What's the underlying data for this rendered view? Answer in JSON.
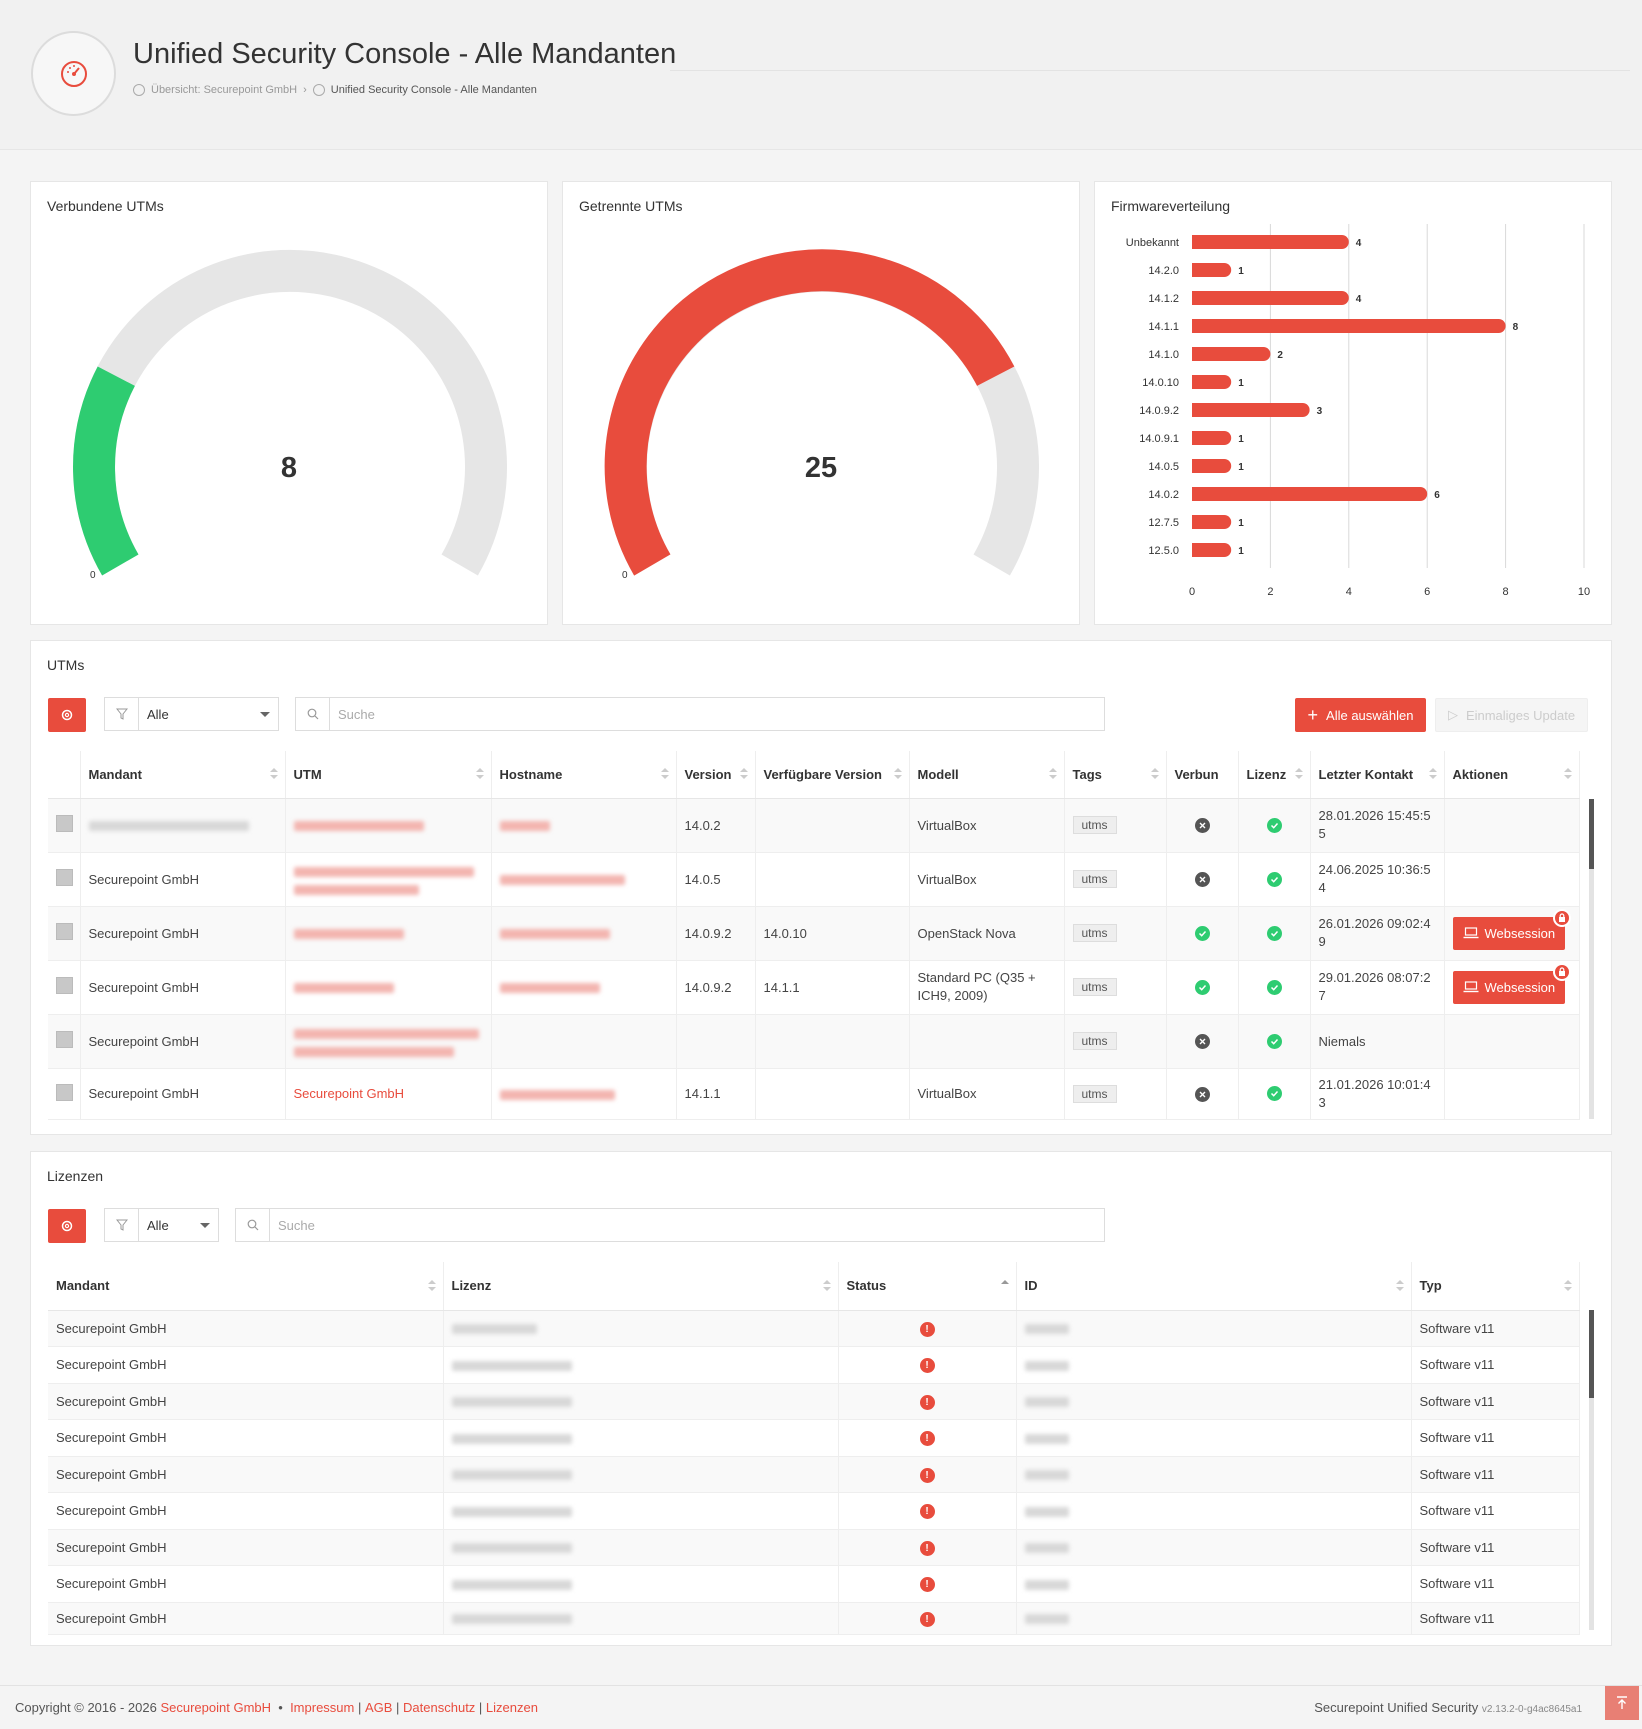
{
  "header": {
    "title": "Unified Security Console - Alle Mandanten",
    "breadcrumb": [
      "Übersicht: Securepoint GmbH",
      "Unified Security Console - Alle Mandanten"
    ]
  },
  "gauges": {
    "connected": {
      "title": "Verbundene UTMs",
      "value": "8",
      "min": "0",
      "fraction": 0.24,
      "color": "#2ecc71"
    },
    "disconnected": {
      "title": "Getrennte UTMs",
      "value": "25",
      "min": "0",
      "fraction": 0.76,
      "color": "#e84c3d"
    }
  },
  "chart_data": {
    "type": "bar",
    "title": "Firmwareverteilung",
    "orientation": "horizontal",
    "categories": [
      "Unbekannt",
      "14.2.0",
      "14.1.2",
      "14.1.1",
      "14.1.0",
      "14.0.10",
      "14.0.9.2",
      "14.0.9.1",
      "14.0.5",
      "14.0.2",
      "12.7.5",
      "12.5.0"
    ],
    "values": [
      4,
      1,
      4,
      8,
      2,
      1,
      3,
      1,
      1,
      6,
      1,
      1
    ],
    "xlim": [
      0,
      10
    ],
    "xticks": [
      "0",
      "2",
      "4",
      "6",
      "8",
      "10"
    ],
    "grid": true,
    "color": "#e84c3d"
  },
  "utms": {
    "title": "UTMs",
    "filter_value": "Alle",
    "search_placeholder": "Suche",
    "select_all_label": "Alle auswählen",
    "update_label": "Einmaliges Update",
    "columns": [
      "Mandant",
      "UTM",
      "Hostname",
      "Version",
      "Verfügbare Version",
      "Modell",
      "Tags",
      "Verbun",
      "Lizenz",
      "Letzter Kontakt",
      "Aktionen"
    ],
    "rows": [
      {
        "mandant": "",
        "utm": "",
        "hostname": "",
        "version": "14.0.2",
        "available": "",
        "model": "VirtualBox",
        "tag": "utms",
        "connected": false,
        "license": true,
        "contact": "28.01.2026 15:45:5 5",
        "action": ""
      },
      {
        "mandant": "Securepoint GmbH",
        "utm": "",
        "hostname": "",
        "version": "14.0.5",
        "available": "",
        "model": "VirtualBox",
        "tag": "utms",
        "connected": false,
        "license": true,
        "contact": "24.06.2025 10:36:5 4",
        "action": ""
      },
      {
        "mandant": "Securepoint GmbH",
        "utm": "",
        "hostname": "",
        "version": "14.0.9.2",
        "available": "14.0.10",
        "model": "OpenStack Nova",
        "tag": "utms",
        "connected": true,
        "license": true,
        "contact": "26.01.2026 09:02:4 9",
        "action": "Websession"
      },
      {
        "mandant": "Securepoint GmbH",
        "utm": "",
        "hostname": "",
        "version": "14.0.9.2",
        "available": "14.1.1",
        "model": "Standard PC (Q35 + ICH9, 2009)",
        "tag": "utms",
        "connected": true,
        "license": true,
        "contact": "29.01.2026 08:07:2 7",
        "action": "Websession"
      },
      {
        "mandant": "Securepoint GmbH",
        "utm": "",
        "hostname": "",
        "version": "",
        "available": "",
        "model": "",
        "tag": "utms",
        "connected": false,
        "license": true,
        "contact": "Niemals",
        "action": ""
      },
      {
        "mandant": "Securepoint GmbH",
        "utm": "Securepoint GmbH",
        "hostname": "",
        "version": "14.1.1",
        "available": "",
        "model": "VirtualBox",
        "tag": "utms",
        "connected": false,
        "license": true,
        "contact": "21.01.2026 10:01:4 3",
        "action": ""
      }
    ]
  },
  "licenses": {
    "title": "Lizenzen",
    "filter_value": "Alle",
    "search_placeholder": "Suche",
    "columns": [
      "Mandant",
      "Lizenz",
      "Status",
      "ID",
      "Typ"
    ],
    "rows": [
      {
        "mandant": "Securepoint GmbH",
        "typ": "Software v11"
      },
      {
        "mandant": "Securepoint GmbH",
        "typ": "Software v11"
      },
      {
        "mandant": "Securepoint GmbH",
        "typ": "Software v11"
      },
      {
        "mandant": "Securepoint GmbH",
        "typ": "Software v11"
      },
      {
        "mandant": "Securepoint GmbH",
        "typ": "Software v11"
      },
      {
        "mandant": "Securepoint GmbH",
        "typ": "Software v11"
      },
      {
        "mandant": "Securepoint GmbH",
        "typ": "Software v11"
      },
      {
        "mandant": "Securepoint GmbH",
        "typ": "Software v11"
      },
      {
        "mandant": "Securepoint GmbH",
        "typ": "Software v11"
      }
    ]
  },
  "footer": {
    "copyright": "Copyright © 2016 - 2026",
    "company": "Securepoint GmbH",
    "separator": "•",
    "links": [
      "Impressum",
      "AGB",
      "Datenschutz",
      "Lizenzen"
    ],
    "product": "Securepoint Unified Security",
    "version": "v2.13.2-0-g4ac8645a1"
  },
  "colors": {
    "accent": "#e84c3d",
    "ok": "#2ecc71",
    "offline": "#555555"
  }
}
